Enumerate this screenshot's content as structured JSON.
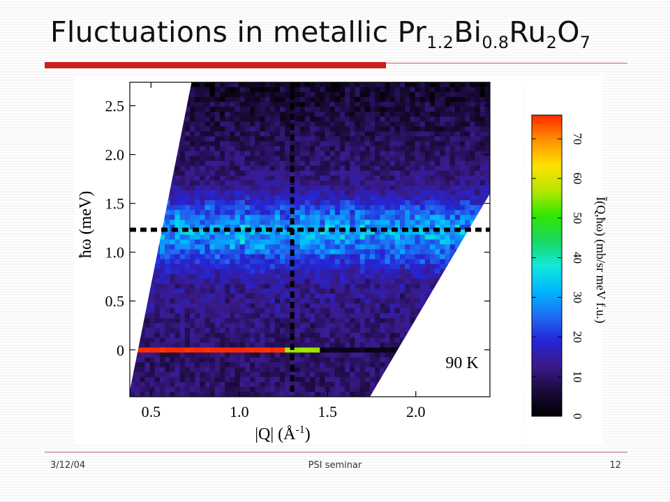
{
  "slide": {
    "title_main": "Fluctuations in metallic Pr",
    "title_sub1": "1.2",
    "title_mid1": "Bi",
    "title_sub2": "0.8",
    "title_mid2": "Ru",
    "title_sub3": "2",
    "title_mid3": "O",
    "title_sub4": "7"
  },
  "footer": {
    "date": "3/12/04",
    "center": "PSI seminar",
    "page": "12"
  },
  "colors": {
    "accent_red": "#cc1f1f",
    "dashed_lines": "#000000"
  },
  "chart_data": {
    "type": "heatmap",
    "xlabel": "|Q| (Å",
    "xlabel_exp": "-1",
    "xlabel_close": ")",
    "ylabel": "ħω (meV)",
    "x_ticks": [
      0.5,
      1.0,
      1.5,
      2.0
    ],
    "x_tick_labels": [
      "0.5",
      "1.0",
      "1.5",
      "2.0"
    ],
    "y_ticks": [
      0,
      0.5,
      1.0,
      1.5,
      2.0,
      2.5
    ],
    "y_tick_labels": [
      "0",
      "0.5",
      "1.0",
      "1.5",
      "2.0",
      "2.5"
    ],
    "xlim": [
      0.38,
      2.42
    ],
    "ylim": [
      -0.48,
      2.74
    ],
    "annotation": "90 K",
    "coverage_left_edge": [
      [
        0.38,
        -0.42
      ],
      [
        0.73,
        2.74
      ]
    ],
    "coverage_right_edge": [
      [
        1.74,
        -0.48
      ],
      [
        2.42,
        1.6
      ]
    ],
    "cuts": {
      "x": 1.3,
      "y": 1.23
    },
    "features": [
      {
        "name": "elastic line",
        "energy": 0,
        "q_range": [
          0.38,
          1.45
        ],
        "intensity": 75
      },
      {
        "name": "inelastic band",
        "energy_center": 1.2,
        "energy_width": 0.35,
        "intensity": 30
      },
      {
        "name": "background",
        "intensity": 10
      }
    ],
    "colorbar": {
      "label": "Ĩ(Q,ħω)  (mb/sr meV f.u.)",
      "min": 0,
      "max": 76,
      "ticks": [
        0,
        10,
        20,
        30,
        40,
        50,
        60,
        70
      ],
      "tick_labels": [
        "0",
        "10",
        "20",
        "30",
        "40",
        "50",
        "60",
        "70"
      ],
      "colors": [
        "#000000",
        "#1a0a3a",
        "#3a1a8a",
        "#2525d6",
        "#1e6cf2",
        "#00b8ff",
        "#12e8d8",
        "#18d860",
        "#32e600",
        "#b8e600",
        "#ffe000",
        "#ff9000",
        "#ff2a00"
      ]
    }
  }
}
